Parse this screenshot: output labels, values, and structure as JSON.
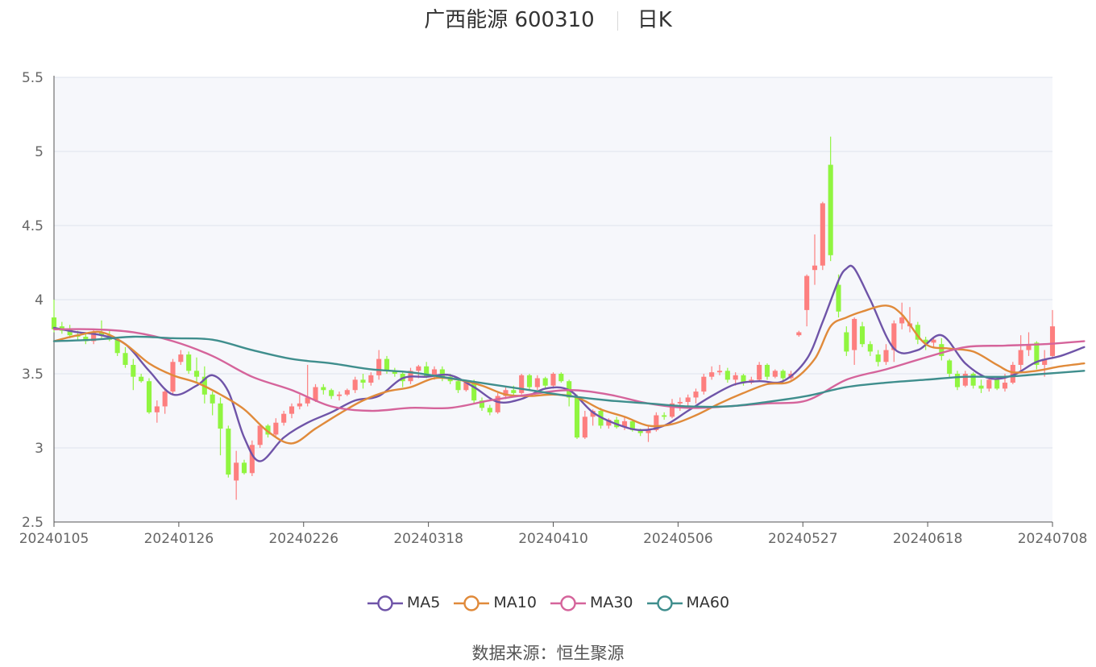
{
  "header": {
    "name": "广西能源 600310",
    "period": "日K"
  },
  "footer": {
    "source_label": "数据来源：",
    "source_name": "恒生聚源"
  },
  "chart_data": {
    "type": "candlestick",
    "title": "广西能源 600310",
    "period": "日K",
    "ylim": [
      2.5,
      5.5
    ],
    "y_ticks": [
      "2.5",
      "3",
      "3.5",
      "4",
      "4.5",
      "5",
      "5.5"
    ],
    "x_ticks": [
      "20240105",
      "20240126",
      "20240226",
      "20240318",
      "20240410",
      "20240506",
      "20240527",
      "20240618",
      "20240708"
    ],
    "grid": true,
    "legend_position": "bottom",
    "colors": {
      "up": "#fd7f7f",
      "down": "#90f540",
      "plot_background": "#f6f7fb",
      "grid": "#dfe3ee"
    },
    "candles": [
      [
        3.88,
        3.8,
        4.0,
        3.78
      ],
      [
        3.82,
        3.79,
        3.85,
        3.77
      ],
      [
        3.8,
        3.76,
        3.83,
        3.74
      ],
      [
        3.76,
        3.75,
        3.79,
        3.73
      ],
      [
        3.75,
        3.72,
        3.77,
        3.7
      ],
      [
        3.72,
        3.78,
        3.8,
        3.7
      ],
      [
        3.78,
        3.76,
        3.86,
        3.74
      ],
      [
        3.76,
        3.73,
        3.8,
        3.72
      ],
      [
        3.73,
        3.64,
        3.75,
        3.62
      ],
      [
        3.64,
        3.56,
        3.68,
        3.54
      ],
      [
        3.56,
        3.48,
        3.6,
        3.39
      ],
      [
        3.48,
        3.45,
        3.5,
        3.44
      ],
      [
        3.45,
        3.24,
        3.47,
        3.23
      ],
      [
        3.24,
        3.28,
        3.32,
        3.17
      ],
      [
        3.28,
        3.38,
        3.4,
        3.23
      ],
      [
        3.38,
        3.58,
        3.6,
        3.36
      ],
      [
        3.58,
        3.63,
        3.66,
        3.56
      ],
      [
        3.63,
        3.52,
        3.65,
        3.5
      ],
      [
        3.52,
        3.48,
        3.61,
        3.44
      ],
      [
        3.48,
        3.36,
        3.55,
        3.3
      ],
      [
        3.36,
        3.3,
        3.38,
        3.22
      ],
      [
        3.3,
        3.13,
        3.34,
        2.95
      ],
      [
        3.13,
        2.82,
        3.15,
        2.8
      ],
      [
        2.78,
        2.9,
        2.98,
        2.65
      ],
      [
        2.9,
        2.83,
        2.92,
        2.82
      ],
      [
        2.83,
        3.02,
        3.05,
        2.81
      ],
      [
        3.02,
        3.15,
        3.16,
        3.0
      ],
      [
        3.15,
        3.09,
        3.16,
        3.07
      ],
      [
        3.09,
        3.17,
        3.2,
        3.08
      ],
      [
        3.17,
        3.23,
        3.25,
        3.15
      ],
      [
        3.23,
        3.28,
        3.3,
        3.2
      ],
      [
        3.28,
        3.3,
        3.36,
        3.26
      ],
      [
        3.3,
        3.34,
        3.56,
        3.28
      ],
      [
        3.32,
        3.41,
        3.43,
        3.31
      ],
      [
        3.41,
        3.39,
        3.43,
        3.36
      ],
      [
        3.39,
        3.35,
        3.4,
        3.33
      ],
      [
        3.35,
        3.36,
        3.38,
        3.32
      ],
      [
        3.36,
        3.39,
        3.4,
        3.35
      ],
      [
        3.39,
        3.46,
        3.48,
        3.37
      ],
      [
        3.46,
        3.44,
        3.5,
        3.4
      ],
      [
        3.44,
        3.49,
        3.51,
        3.42
      ],
      [
        3.49,
        3.6,
        3.66,
        3.46
      ],
      [
        3.6,
        3.52,
        3.62,
        3.5
      ],
      [
        3.52,
        3.5,
        3.54,
        3.48
      ],
      [
        3.5,
        3.45,
        3.52,
        3.41
      ],
      [
        3.45,
        3.52,
        3.54,
        3.43
      ],
      [
        3.52,
        3.55,
        3.56,
        3.47
      ],
      [
        3.55,
        3.48,
        3.58,
        3.47
      ],
      [
        3.48,
        3.53,
        3.55,
        3.46
      ],
      [
        3.53,
        3.48,
        3.55,
        3.45
      ],
      [
        3.48,
        3.45,
        3.5,
        3.43
      ],
      [
        3.45,
        3.39,
        3.47,
        3.37
      ],
      [
        3.39,
        3.44,
        3.46,
        3.38
      ],
      [
        3.44,
        3.32,
        3.46,
        3.3
      ],
      [
        3.32,
        3.27,
        3.34,
        3.25
      ],
      [
        3.27,
        3.24,
        3.29,
        3.22
      ],
      [
        3.24,
        3.35,
        3.37,
        3.23
      ],
      [
        3.35,
        3.39,
        3.41,
        3.33
      ],
      [
        3.39,
        3.37,
        3.42,
        3.35
      ],
      [
        3.37,
        3.49,
        3.5,
        3.36
      ],
      [
        3.49,
        3.41,
        3.5,
        3.39
      ],
      [
        3.41,
        3.47,
        3.49,
        3.39
      ],
      [
        3.47,
        3.42,
        3.48,
        3.4
      ],
      [
        3.42,
        3.5,
        3.51,
        3.4
      ],
      [
        3.5,
        3.45,
        3.51,
        3.44
      ],
      [
        3.45,
        3.34,
        3.46,
        3.28
      ],
      [
        3.34,
        3.07,
        3.36,
        3.06
      ],
      [
        3.07,
        3.21,
        3.25,
        3.06
      ],
      [
        3.21,
        3.25,
        3.26,
        3.15
      ],
      [
        3.25,
        3.15,
        3.27,
        3.13
      ],
      [
        3.15,
        3.19,
        3.2,
        3.13
      ],
      [
        3.19,
        3.14,
        3.21,
        3.13
      ],
      [
        3.14,
        3.18,
        3.21,
        3.12
      ],
      [
        3.18,
        3.12,
        3.19,
        3.11
      ],
      [
        3.12,
        3.1,
        3.13,
        3.08
      ],
      [
        3.1,
        3.12,
        3.15,
        3.04
      ],
      [
        3.12,
        3.22,
        3.24,
        3.11
      ],
      [
        3.22,
        3.21,
        3.24,
        3.19
      ],
      [
        3.21,
        3.3,
        3.33,
        3.2
      ],
      [
        3.3,
        3.31,
        3.34,
        3.25
      ],
      [
        3.31,
        3.34,
        3.36,
        3.28
      ],
      [
        3.34,
        3.38,
        3.4,
        3.3
      ],
      [
        3.38,
        3.48,
        3.5,
        3.36
      ],
      [
        3.48,
        3.51,
        3.55,
        3.46
      ],
      [
        3.51,
        3.52,
        3.56,
        3.49
      ],
      [
        3.52,
        3.46,
        3.54,
        3.44
      ],
      [
        3.46,
        3.49,
        3.51,
        3.42
      ],
      [
        3.49,
        3.44,
        3.5,
        3.42
      ],
      [
        3.44,
        3.46,
        3.48,
        3.43
      ],
      [
        3.46,
        3.56,
        3.58,
        3.45
      ],
      [
        3.56,
        3.48,
        3.57,
        3.46
      ],
      [
        3.48,
        3.52,
        3.53,
        3.47
      ],
      [
        3.52,
        3.47,
        3.53,
        3.44
      ],
      [
        3.47,
        3.5,
        3.52,
        3.46
      ],
      [
        3.76,
        3.78,
        3.79,
        3.75
      ],
      [
        3.93,
        4.16,
        4.17,
        3.82
      ],
      [
        4.2,
        4.23,
        4.44,
        4.1
      ],
      [
        4.23,
        4.65,
        4.66,
        4.2
      ],
      [
        4.91,
        4.3,
        5.1,
        4.26
      ],
      [
        4.1,
        3.92,
        4.17,
        3.88
      ],
      [
        3.78,
        3.65,
        3.82,
        3.62
      ],
      [
        3.66,
        3.87,
        3.88,
        3.56
      ],
      [
        3.82,
        3.7,
        3.85,
        3.68
      ],
      [
        3.7,
        3.65,
        3.72,
        3.62
      ],
      [
        3.63,
        3.58,
        3.66,
        3.55
      ],
      [
        3.58,
        3.66,
        3.7,
        3.56
      ],
      [
        3.66,
        3.84,
        3.86,
        3.58
      ],
      [
        3.84,
        3.88,
        3.98,
        3.8
      ],
      [
        3.82,
        3.84,
        3.95,
        3.78
      ],
      [
        3.83,
        3.73,
        3.85,
        3.7
      ],
      [
        3.73,
        3.71,
        3.75,
        3.66
      ],
      [
        3.71,
        3.73,
        3.75,
        3.68
      ],
      [
        3.7,
        3.62,
        3.74,
        3.59
      ],
      [
        3.59,
        3.5,
        3.6,
        3.47
      ],
      [
        3.5,
        3.41,
        3.52,
        3.39
      ],
      [
        3.42,
        3.5,
        3.52,
        3.41
      ],
      [
        3.5,
        3.42,
        3.51,
        3.4
      ],
      [
        3.42,
        3.4,
        3.46,
        3.37
      ],
      [
        3.4,
        3.46,
        3.47,
        3.38
      ],
      [
        3.46,
        3.4,
        3.48,
        3.39
      ],
      [
        3.4,
        3.44,
        3.5,
        3.38
      ],
      [
        3.44,
        3.56,
        3.58,
        3.43
      ],
      [
        3.56,
        3.66,
        3.76,
        3.52
      ],
      [
        3.66,
        3.7,
        3.78,
        3.62
      ],
      [
        3.71,
        3.56,
        3.72,
        3.53
      ],
      [
        3.56,
        3.6,
        3.66,
        3.48
      ],
      [
        3.62,
        3.82,
        3.93,
        3.6
      ]
    ],
    "series": [
      {
        "name": "MA5",
        "color": "#6f54a8",
        "values": [
          [
            0,
            3.81
          ],
          [
            3,
            3.78
          ],
          [
            6,
            3.76
          ],
          [
            9,
            3.7
          ],
          [
            12,
            3.52
          ],
          [
            15,
            3.36
          ],
          [
            18,
            3.42
          ],
          [
            20,
            3.49
          ],
          [
            22,
            3.38
          ],
          [
            24,
            3.07
          ],
          [
            26,
            2.91
          ],
          [
            29,
            3.07
          ],
          [
            32,
            3.17
          ],
          [
            35,
            3.24
          ],
          [
            38,
            3.32
          ],
          [
            41,
            3.35
          ],
          [
            44,
            3.47
          ],
          [
            47,
            3.48
          ],
          [
            50,
            3.49
          ],
          [
            53,
            3.41
          ],
          [
            56,
            3.31
          ],
          [
            59,
            3.33
          ],
          [
            62,
            3.4
          ],
          [
            65,
            3.39
          ],
          [
            68,
            3.24
          ],
          [
            71,
            3.16
          ],
          [
            74,
            3.12
          ],
          [
            77,
            3.15
          ],
          [
            80,
            3.25
          ],
          [
            83,
            3.35
          ],
          [
            86,
            3.43
          ],
          [
            89,
            3.45
          ],
          [
            92,
            3.45
          ],
          [
            95,
            3.6
          ],
          [
            97,
            3.85
          ],
          [
            99,
            4.13
          ],
          [
            100,
            4.21
          ],
          [
            101,
            4.21
          ],
          [
            103,
            4.0
          ],
          [
            106,
            3.67
          ],
          [
            109,
            3.66
          ],
          [
            112,
            3.76
          ],
          [
            115,
            3.57
          ],
          [
            118,
            3.47
          ],
          [
            121,
            3.49
          ],
          [
            124,
            3.58
          ],
          [
            127,
            3.62
          ],
          [
            130,
            3.68
          ]
        ]
      },
      {
        "name": "MA10",
        "color": "#e08a3a",
        "values": [
          [
            0,
            3.72
          ],
          [
            3,
            3.76
          ],
          [
            6,
            3.78
          ],
          [
            9,
            3.7
          ],
          [
            12,
            3.57
          ],
          [
            15,
            3.49
          ],
          [
            18,
            3.44
          ],
          [
            21,
            3.36
          ],
          [
            24,
            3.26
          ],
          [
            27,
            3.11
          ],
          [
            30,
            3.03
          ],
          [
            33,
            3.13
          ],
          [
            36,
            3.23
          ],
          [
            39,
            3.32
          ],
          [
            42,
            3.38
          ],
          [
            45,
            3.41
          ],
          [
            48,
            3.47
          ],
          [
            51,
            3.46
          ],
          [
            54,
            3.42
          ],
          [
            57,
            3.36
          ],
          [
            60,
            3.35
          ],
          [
            63,
            3.36
          ],
          [
            66,
            3.34
          ],
          [
            69,
            3.26
          ],
          [
            72,
            3.21
          ],
          [
            75,
            3.15
          ],
          [
            78,
            3.16
          ],
          [
            81,
            3.22
          ],
          [
            84,
            3.3
          ],
          [
            87,
            3.37
          ],
          [
            90,
            3.43
          ],
          [
            93,
            3.45
          ],
          [
            96,
            3.6
          ],
          [
            98,
            3.82
          ],
          [
            100,
            3.88
          ],
          [
            102,
            3.92
          ],
          [
            105,
            3.96
          ],
          [
            107,
            3.9
          ],
          [
            110,
            3.7
          ],
          [
            113,
            3.67
          ],
          [
            116,
            3.65
          ],
          [
            119,
            3.56
          ],
          [
            121,
            3.51
          ],
          [
            124,
            3.52
          ],
          [
            127,
            3.55
          ],
          [
            130,
            3.57
          ]
        ]
      },
      {
        "name": "MA30",
        "color": "#d5649b",
        "values": [
          [
            0,
            3.8
          ],
          [
            5,
            3.8
          ],
          [
            10,
            3.78
          ],
          [
            15,
            3.72
          ],
          [
            20,
            3.62
          ],
          [
            25,
            3.48
          ],
          [
            30,
            3.39
          ],
          [
            35,
            3.28
          ],
          [
            40,
            3.25
          ],
          [
            45,
            3.27
          ],
          [
            50,
            3.27
          ],
          [
            55,
            3.32
          ],
          [
            60,
            3.36
          ],
          [
            65,
            3.39
          ],
          [
            70,
            3.36
          ],
          [
            75,
            3.3
          ],
          [
            80,
            3.27
          ],
          [
            85,
            3.28
          ],
          [
            90,
            3.3
          ],
          [
            95,
            3.32
          ],
          [
            100,
            3.46
          ],
          [
            105,
            3.53
          ],
          [
            110,
            3.61
          ],
          [
            115,
            3.68
          ],
          [
            120,
            3.69
          ],
          [
            125,
            3.7
          ],
          [
            130,
            3.72
          ]
        ]
      },
      {
        "name": "MA60",
        "color": "#3f8e8d",
        "values": [
          [
            0,
            3.72
          ],
          [
            5,
            3.73
          ],
          [
            10,
            3.75
          ],
          [
            15,
            3.74
          ],
          [
            20,
            3.73
          ],
          [
            25,
            3.66
          ],
          [
            30,
            3.6
          ],
          [
            35,
            3.57
          ],
          [
            40,
            3.53
          ],
          [
            45,
            3.51
          ],
          [
            50,
            3.47
          ],
          [
            55,
            3.43
          ],
          [
            60,
            3.39
          ],
          [
            65,
            3.35
          ],
          [
            70,
            3.32
          ],
          [
            75,
            3.3
          ],
          [
            80,
            3.28
          ],
          [
            85,
            3.28
          ],
          [
            90,
            3.31
          ],
          [
            95,
            3.35
          ],
          [
            100,
            3.41
          ],
          [
            105,
            3.44
          ],
          [
            110,
            3.46
          ],
          [
            115,
            3.48
          ],
          [
            120,
            3.48
          ],
          [
            125,
            3.5
          ],
          [
            130,
            3.52
          ]
        ]
      }
    ]
  }
}
